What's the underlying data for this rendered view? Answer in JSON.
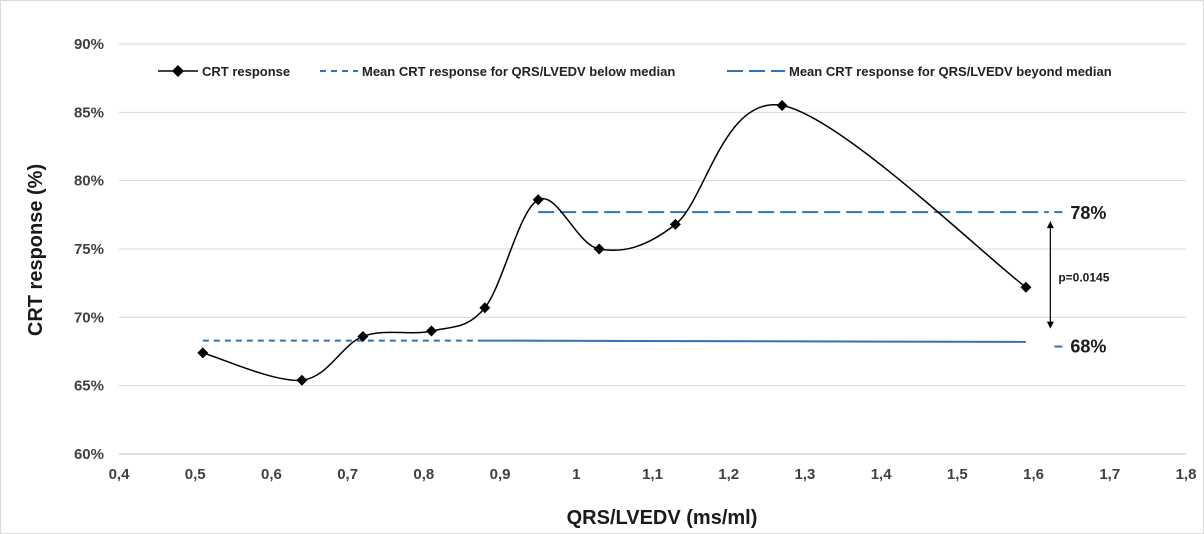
{
  "chart_data": {
    "type": "line",
    "title": "",
    "xlabel": "QRS/LVEDV (ms/ml)",
    "ylabel": "CRT response (%)",
    "xlim": [
      0.4,
      1.8
    ],
    "ylim": [
      60,
      90
    ],
    "x_ticks": [
      "0,4",
      "0,5",
      "0,6",
      "0,7",
      "0,8",
      "0,9",
      "1",
      "1,1",
      "1,2",
      "1,3",
      "1,4",
      "1,5",
      "1,6",
      "1,7",
      "1,8"
    ],
    "y_ticks": [
      "60%",
      "65%",
      "70%",
      "75%",
      "80%",
      "85%",
      "90%"
    ],
    "grid": "horizontal",
    "legend_position": "top",
    "series": [
      {
        "name": "CRT response",
        "style": "solid-smooth-diamond",
        "color": "#000000",
        "points": [
          {
            "x": 0.51,
            "y": 67.4
          },
          {
            "x": 0.64,
            "y": 65.4
          },
          {
            "x": 0.72,
            "y": 68.6
          },
          {
            "x": 0.81,
            "y": 69.0
          },
          {
            "x": 0.88,
            "y": 70.7
          },
          {
            "x": 0.95,
            "y": 78.6
          },
          {
            "x": 1.03,
            "y": 75.0
          },
          {
            "x": 1.13,
            "y": 76.8
          },
          {
            "x": 1.27,
            "y": 85.5
          },
          {
            "x": 1.59,
            "y": 72.2
          }
        ]
      },
      {
        "name": "Mean CRT response for QRS/LVEDV below median",
        "style": "short-dash",
        "color": "#2E75B6",
        "points": [
          {
            "x": 0.51,
            "y": 68.3
          },
          {
            "x": 0.875,
            "y": 68.3
          }
        ]
      },
      {
        "name": "Mean CRT response for QRS/LVEDV beyond median",
        "style": "long-dash",
        "color": "#2E75B6",
        "points": [
          {
            "x": 0.95,
            "y": 77.7
          },
          {
            "x": 1.62,
            "y": 77.7
          }
        ]
      }
    ],
    "extra_lines": [
      {
        "style": "solid",
        "color": "#2E75B6",
        "points": [
          {
            "x": 0.875,
            "y": 68.3
          },
          {
            "x": 1.59,
            "y": 68.2
          }
        ]
      }
    ],
    "annotations": {
      "high_label": "78%",
      "low_label": "68%",
      "p_value": "p=0.0145",
      "high_value": 77.7,
      "low_value": 68.3,
      "arrow_x": 1.622
    }
  }
}
